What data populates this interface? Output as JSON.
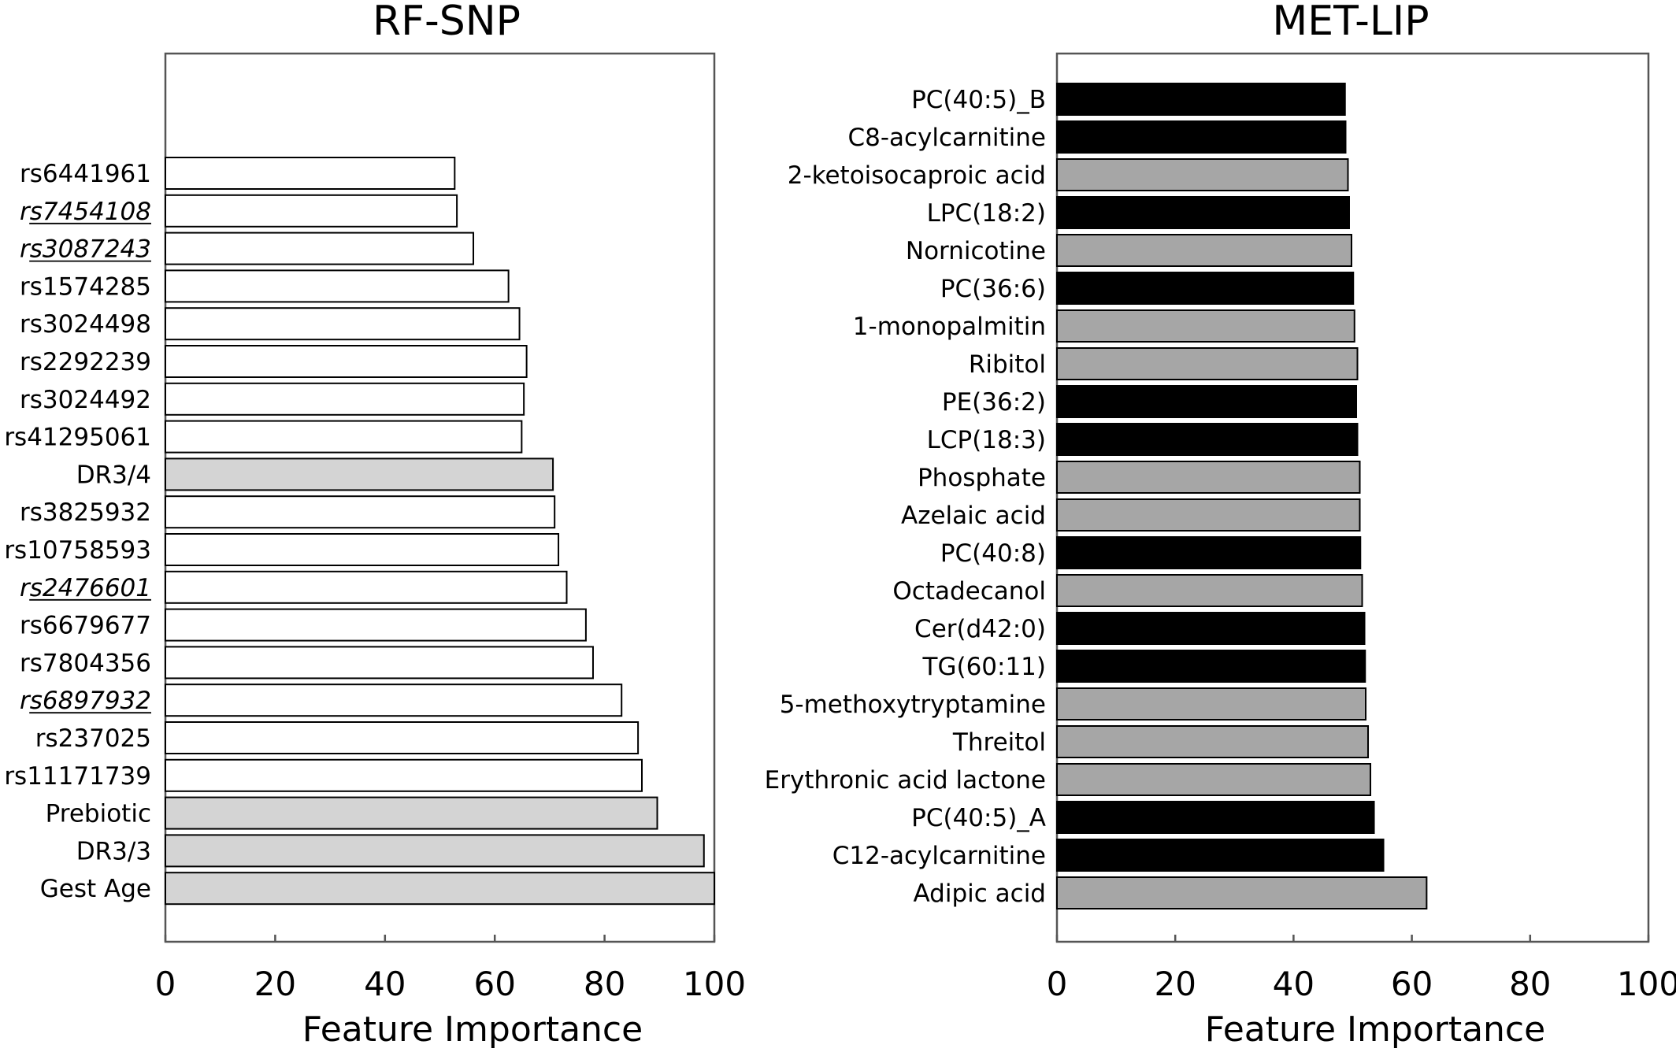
{
  "colors": {
    "white": "#ffffff",
    "light_gray": "#d4d4d4",
    "gray": "#a6a6a6",
    "black": "#000000"
  },
  "chart_data": [
    {
      "type": "bar",
      "orientation": "horizontal",
      "title": "RF-SNP",
      "xlabel": "Feature Importance",
      "ylabel": "",
      "xlim": [
        0,
        100
      ],
      "xticks": [
        "0",
        "20",
        "40",
        "60",
        "80",
        "100"
      ],
      "grid": false,
      "categories": [
        "rs6441961",
        "rs7454108",
        "rs3087243",
        "rs1574285",
        "rs3024498",
        "rs2292239",
        "rs3024492",
        "rs41295061",
        "DR3/4",
        "rs3825932",
        "rs10758593",
        "rs2476601",
        "rs6679677",
        "rs7804356",
        "rs6897932",
        "rs237025",
        "rs11171739",
        "Prebiotic",
        "DR3/3",
        "Gest Age"
      ],
      "values": [
        52.7,
        53.1,
        56.1,
        62.5,
        64.5,
        65.8,
        65.3,
        64.9,
        70.6,
        70.9,
        71.6,
        73.1,
        76.6,
        77.9,
        83.1,
        86.1,
        86.8,
        89.6,
        98.1,
        100
      ],
      "bar_colors": [
        "#ffffff",
        "#ffffff",
        "#ffffff",
        "#ffffff",
        "#ffffff",
        "#ffffff",
        "#ffffff",
        "#ffffff",
        "#d4d4d4",
        "#ffffff",
        "#ffffff",
        "#ffffff",
        "#ffffff",
        "#ffffff",
        "#ffffff",
        "#ffffff",
        "#ffffff",
        "#d4d4d4",
        "#d4d4d4",
        "#d4d4d4"
      ],
      "italic_underlined": [
        "rs7454108",
        "rs3087243",
        "rs2476601",
        "rs6897932"
      ]
    },
    {
      "type": "bar",
      "orientation": "horizontal",
      "title": "MET-LIP",
      "xlabel": "Feature Importance",
      "ylabel": "",
      "xlim": [
        0,
        100
      ],
      "xticks": [
        "0",
        "20",
        "40",
        "60",
        "80",
        "100"
      ],
      "grid": false,
      "categories": [
        "PC(40:5)_B",
        "C8-acylcarnitine",
        "2-ketoisocaproic acid",
        "LPC(18:2)",
        "Nornicotine",
        "PC(36:6)",
        "1-monopalmitin",
        "Ribitol",
        "PE(36:2)",
        "LCP(18:3)",
        "Phosphate",
        "Azelaic acid",
        "PC(40:8)",
        "Octadecanol",
        "Cer(d42:0)",
        "TG(60:11)",
        "5-methoxytryptamine",
        "Threitol",
        "Erythronic acid lactone",
        "PC(40:5)_A",
        "C12-acylcarnitine",
        "Adipic acid"
      ],
      "values": [
        48.7,
        48.8,
        49.2,
        49.4,
        49.8,
        50.1,
        50.3,
        50.8,
        50.6,
        50.8,
        51.2,
        51.2,
        51.3,
        51.6,
        52.0,
        52.1,
        52.2,
        52.6,
        53.0,
        53.6,
        55.2,
        62.5
      ],
      "bar_colors": [
        "#000000",
        "#000000",
        "#a6a6a6",
        "#000000",
        "#a6a6a6",
        "#000000",
        "#a6a6a6",
        "#a6a6a6",
        "#000000",
        "#000000",
        "#a6a6a6",
        "#a6a6a6",
        "#000000",
        "#a6a6a6",
        "#000000",
        "#000000",
        "#a6a6a6",
        "#a6a6a6",
        "#a6a6a6",
        "#000000",
        "#000000",
        "#a6a6a6"
      ],
      "italic_underlined": []
    }
  ]
}
